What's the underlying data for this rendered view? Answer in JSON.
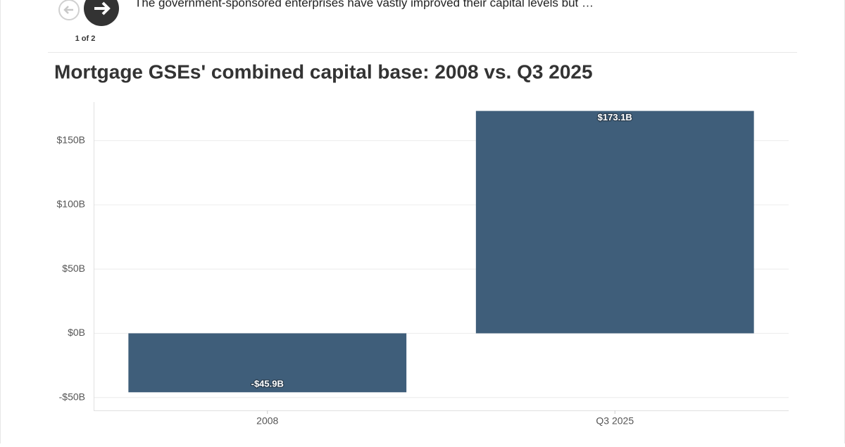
{
  "nav": {
    "counter": "1 of 2",
    "caption": "The government-sponsored enterprises have vastly improved their capital levels but …"
  },
  "chart_data": {
    "type": "bar",
    "title": "Mortgage GSEs' combined capital base: 2008 vs. Q3 2025",
    "categories": [
      "2008",
      "Q3 2025"
    ],
    "values": [
      -45.9,
      173.1
    ],
    "value_labels": [
      "-$45.9B",
      "$173.1B"
    ],
    "color": "#3f5e7a",
    "ylim": [
      -60,
      180
    ],
    "yticks": [
      {
        "value": -50,
        "label": "-$50B"
      },
      {
        "value": 0,
        "label": "$0B"
      },
      {
        "value": 50,
        "label": "$50B"
      },
      {
        "value": 100,
        "label": "$100B"
      },
      {
        "value": 150,
        "label": "$150B"
      }
    ],
    "grid": true
  }
}
